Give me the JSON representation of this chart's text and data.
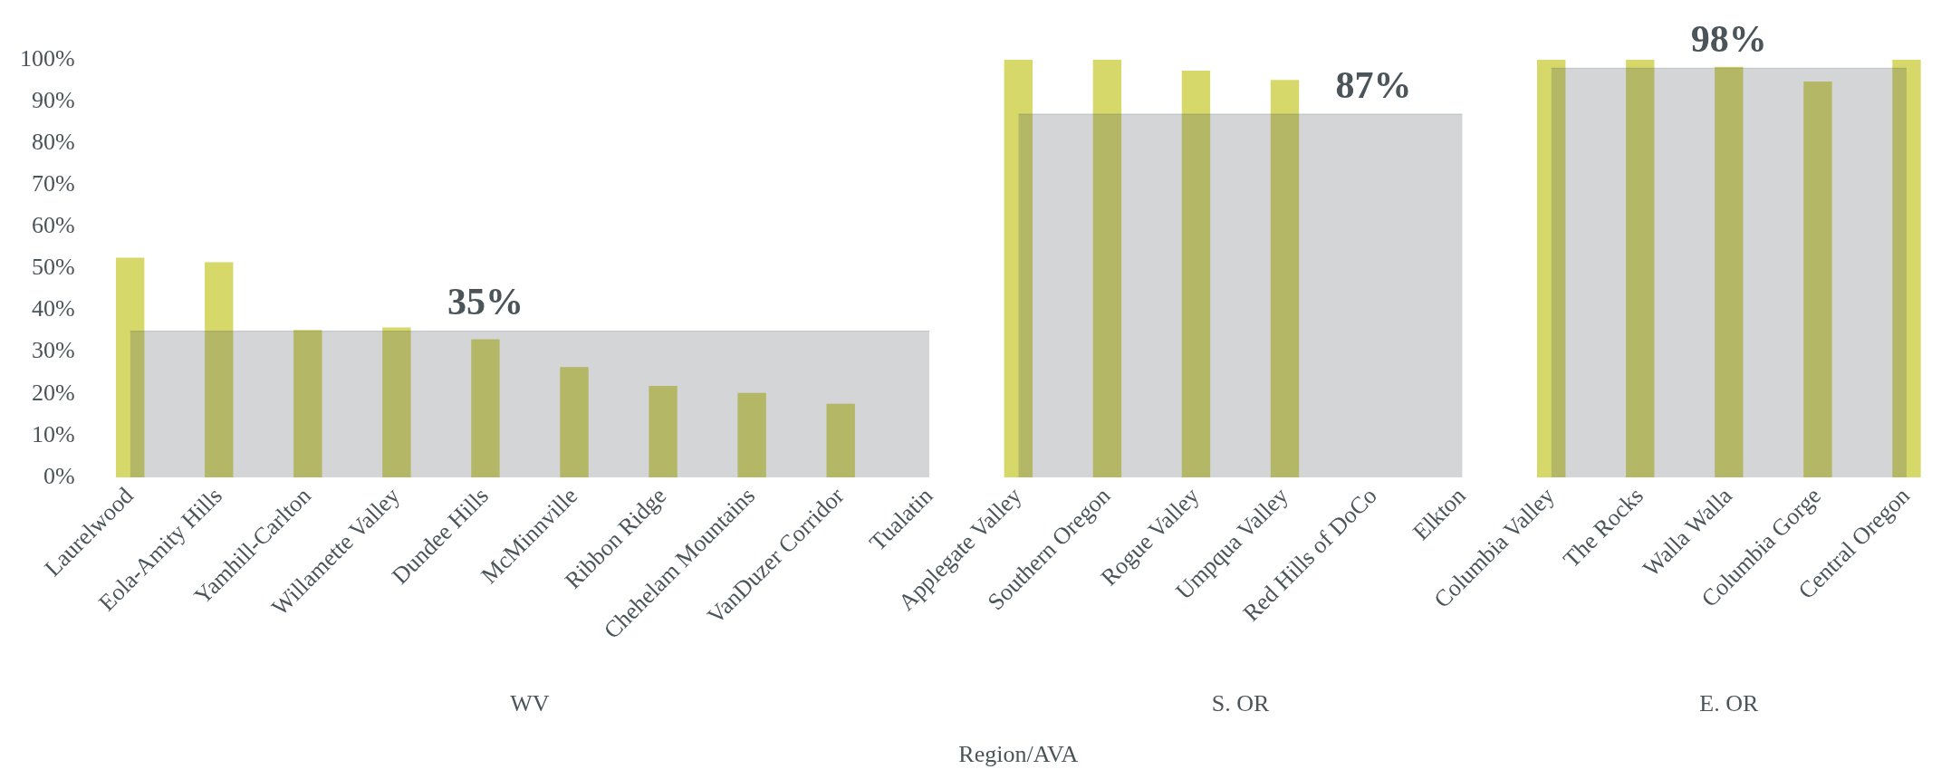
{
  "chart_data": {
    "type": "bar",
    "xlabel": "Region/AVA",
    "categories": [
      "Laurelwood",
      "Eola-Amity Hills",
      "Yamhill-Carlton",
      "Willamette Valley",
      "Dundee Hills",
      "McMinnville",
      "Ribbon Ridge",
      "Chehelam Mountains",
      "VanDuzer Corridor",
      "Tualatin",
      "Applegate Valley",
      "Southern Oregon",
      "Rogue Valley",
      "Umpqua Valley",
      "Red Hills of DoCo",
      "Elkton",
      "Columbia Valley",
      "The Rocks",
      "Walla Walla",
      "Columbia Gorge",
      "Central Oregon"
    ],
    "series": [
      {
        "color": "#d6d86a",
        "values": [
          52.6,
          51.5,
          35.3,
          35.9,
          33.1,
          26.4,
          21.9,
          20.2,
          17.6,
          null,
          100,
          100,
          97.4,
          95.2,
          null,
          null,
          100,
          100,
          98.3,
          94.8,
          100
        ]
      },
      {
        "type": "area",
        "color": "#4a5459",
        "values": [
          35,
          35,
          35,
          35,
          35,
          35,
          35,
          35,
          35,
          35,
          null,
          null,
          null,
          null,
          null,
          null,
          null,
          null,
          null,
          null,
          null
        ],
        "value_labels": [
          null,
          null,
          null,
          null,
          "35%",
          null,
          null,
          null,
          null,
          null,
          null,
          null,
          null,
          null,
          null,
          null,
          null,
          null,
          null,
          null,
          null
        ]
      },
      {
        "type": "area",
        "color": "#4a5459",
        "values": [
          null,
          null,
          null,
          null,
          null,
          null,
          null,
          null,
          null,
          null,
          87,
          87,
          87,
          87,
          87,
          87,
          null,
          null,
          null,
          null,
          null
        ],
        "value_labels": [
          null,
          null,
          null,
          null,
          null,
          null,
          null,
          null,
          null,
          null,
          null,
          null,
          null,
          null,
          "87%",
          null,
          null,
          null,
          null,
          null,
          null
        ]
      },
      {
        "type": "area",
        "color": "#4a5459",
        "values": [
          null,
          null,
          null,
          null,
          null,
          null,
          null,
          null,
          null,
          null,
          null,
          null,
          null,
          null,
          null,
          null,
          98,
          98,
          98,
          98,
          98
        ],
        "value_labels": [
          null,
          null,
          null,
          null,
          null,
          null,
          null,
          null,
          null,
          null,
          null,
          null,
          null,
          null,
          null,
          null,
          null,
          null,
          "98%",
          null,
          null
        ]
      }
    ],
    "ylim": [
      0,
      100
    ],
    "yticks": [
      {
        "value": 0,
        "label": "0%"
      },
      {
        "value": 10,
        "label": "10%"
      },
      {
        "value": 20,
        "label": "20%"
      },
      {
        "value": 30,
        "label": "30%"
      },
      {
        "value": 40,
        "label": "40%"
      },
      {
        "value": 50,
        "label": "50%"
      },
      {
        "value": 60,
        "label": "60%"
      },
      {
        "value": 70,
        "label": "70%"
      },
      {
        "value": 80,
        "label": "80%"
      },
      {
        "value": 90,
        "label": "90%"
      },
      {
        "value": 100,
        "label": "100%"
      }
    ],
    "annotations": [
      "WV",
      "S. OR",
      "E. OR"
    ],
    "grid": false,
    "legend": false
  }
}
